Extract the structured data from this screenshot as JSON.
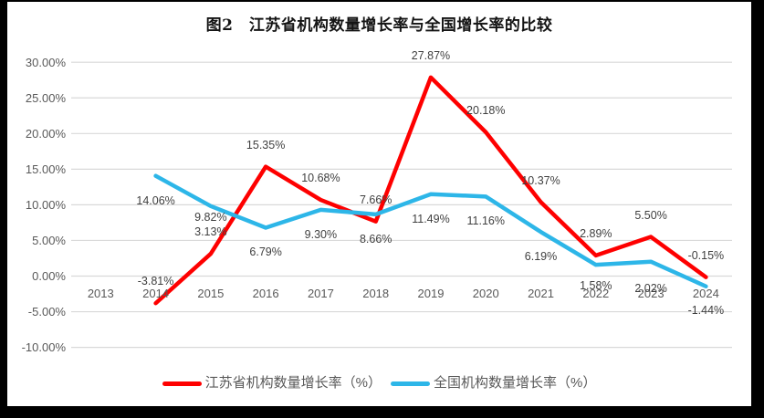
{
  "title": "图2　江苏省机构数量增长率与全国增长率的比较",
  "colors": {
    "jiangsu_series": "#fe0000",
    "national_series": "#2db6e8",
    "gridline": "#d9d9d9",
    "axis_text": "#595959",
    "data_label_text": "#3f3f3f",
    "frame": "#000000"
  },
  "chart_data": {
    "type": "line",
    "title": "图2　江苏省机构数量增长率与全国增长率的比较",
    "categories": [
      "2013",
      "2014",
      "2015",
      "2016",
      "2017",
      "2018",
      "2019",
      "2020",
      "2021",
      "2022",
      "2023",
      "2024"
    ],
    "series": [
      {
        "name": "江苏省机构数量增长率（%）",
        "color": "#fe0000",
        "values": [
          null,
          -3.81,
          3.13,
          15.35,
          10.68,
          7.66,
          27.87,
          20.18,
          10.37,
          2.89,
          5.5,
          -0.15
        ],
        "labels": [
          "",
          "-3.81%",
          "3.13%",
          "15.35%",
          "10.68%",
          "7.66%",
          "27.87%",
          "20.18%",
          "10.37%",
          "2.89%",
          "5.50%",
          "-0.15%"
        ]
      },
      {
        "name": "全国机构数量增长率（%）",
        "color": "#2db6e8",
        "values": [
          null,
          14.06,
          9.82,
          6.79,
          9.3,
          8.66,
          11.49,
          11.16,
          6.19,
          1.58,
          2.02,
          -1.44
        ],
        "labels": [
          "",
          "14.06%",
          "9.82%",
          "6.79%",
          "9.30%",
          "8.66%",
          "11.49%",
          "11.16%",
          "6.19%",
          "1.58%",
          "2.02%",
          "-1.44%"
        ]
      }
    ],
    "yticks": {
      "values": [
        30,
        25,
        20,
        15,
        10,
        5,
        0,
        -5,
        -10
      ],
      "labels": [
        "30.00%",
        "25.00%",
        "20.00%",
        "15.00%",
        "10.00%",
        "5.00%",
        "0.00%",
        "-5.00%",
        "-10.00%"
      ]
    },
    "ylim": [
      -10,
      30
    ],
    "xlabel": "",
    "ylabel": "",
    "grid": true,
    "legend_position": "bottom"
  }
}
